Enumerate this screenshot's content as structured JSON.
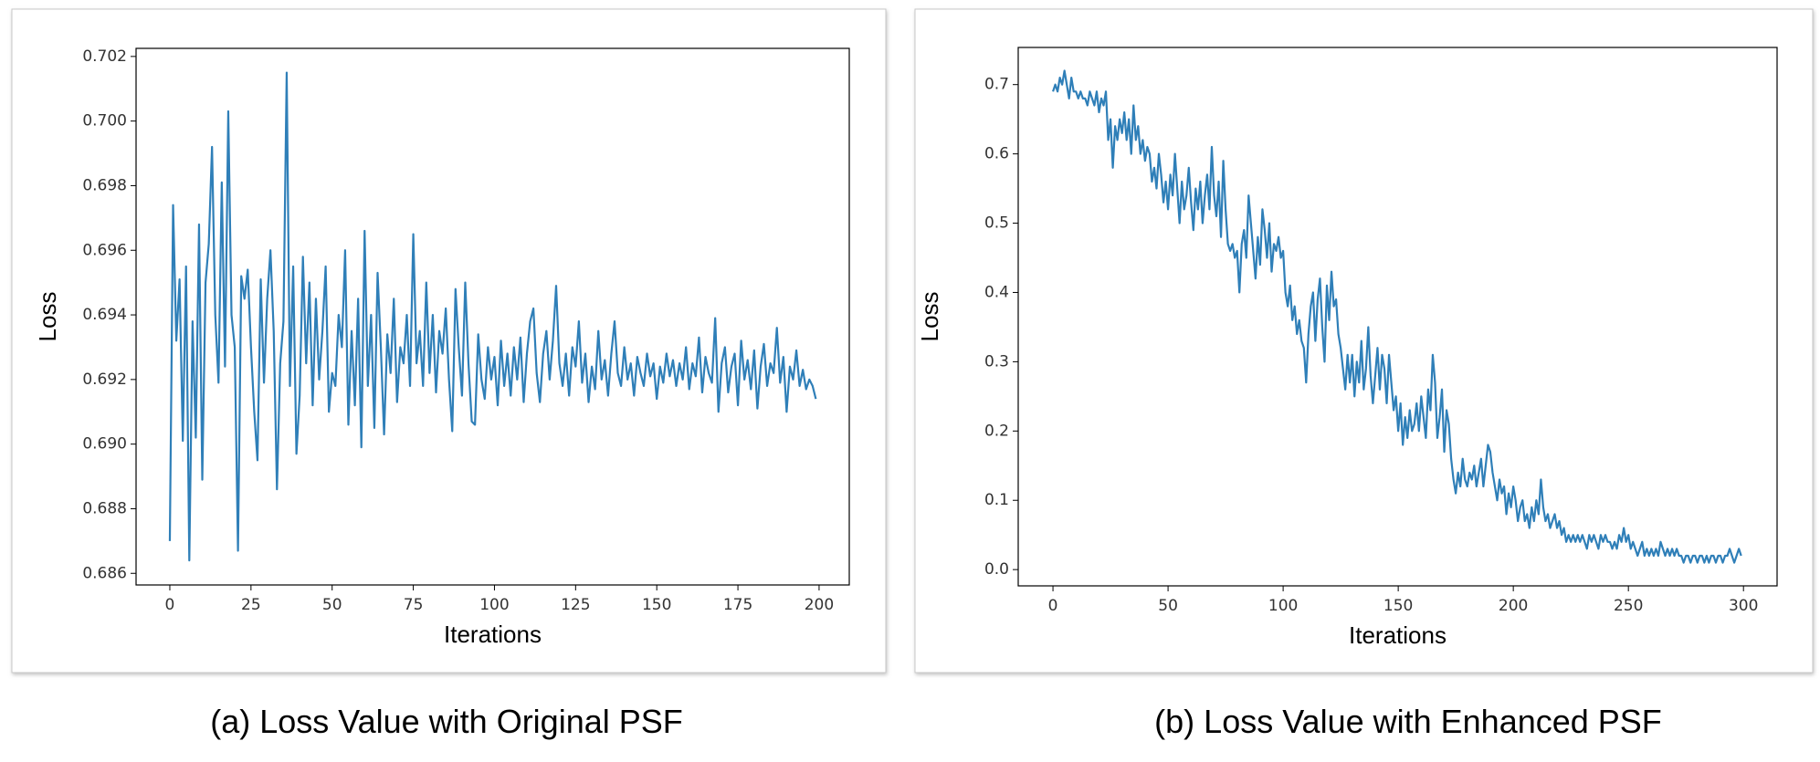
{
  "chart_data": [
    {
      "type": "line",
      "caption": "(a) Loss Value with Original PSF",
      "xlabel": "Iterations",
      "ylabel": "Loss",
      "xlim": [
        -10.4,
        209.3
      ],
      "xticks": [
        0,
        25,
        50,
        75,
        100,
        125,
        150,
        175,
        200
      ],
      "ylim": [
        0.68564,
        0.70225
      ],
      "yticks": [
        0.686,
        0.688,
        {
          "value": 0.69,
          "label": "0.690"
        },
        0.692,
        0.694,
        0.696,
        0.698,
        {
          "value": 0.7,
          "label": "0.700"
        },
        0.702
      ],
      "series": [
        {
          "color": "#2f7fb8",
          "values": [
            0.687,
            0.6974,
            0.6932,
            0.6951,
            0.6901,
            0.6955,
            0.6864,
            0.6938,
            0.6902,
            0.6968,
            0.6889,
            0.695,
            0.6962,
            0.6992,
            0.694,
            0.6919,
            0.6981,
            0.6924,
            0.7003,
            0.694,
            0.693,
            0.6867,
            0.6952,
            0.6945,
            0.6954,
            0.693,
            0.691,
            0.6895,
            0.6951,
            0.6919,
            0.6945,
            0.696,
            0.6935,
            0.6886,
            0.6925,
            0.6938,
            0.7015,
            0.6918,
            0.6955,
            0.6897,
            0.6915,
            0.6958,
            0.6925,
            0.695,
            0.6912,
            0.6945,
            0.692,
            0.6935,
            0.6955,
            0.691,
            0.6922,
            0.6918,
            0.694,
            0.693,
            0.696,
            0.6906,
            0.6935,
            0.6912,
            0.6945,
            0.6899,
            0.6966,
            0.6918,
            0.694,
            0.6905,
            0.6953,
            0.693,
            0.6903,
            0.6934,
            0.6922,
            0.6945,
            0.6913,
            0.693,
            0.6925,
            0.694,
            0.6918,
            0.6965,
            0.6925,
            0.6935,
            0.6918,
            0.695,
            0.6922,
            0.694,
            0.6916,
            0.6935,
            0.6928,
            0.6942,
            0.692,
            0.6904,
            0.6948,
            0.693,
            0.6915,
            0.695,
            0.6925,
            0.6907,
            0.6906,
            0.6934,
            0.692,
            0.6914,
            0.693,
            0.692,
            0.6927,
            0.6912,
            0.6932,
            0.6918,
            0.6928,
            0.6915,
            0.693,
            0.692,
            0.6933,
            0.6913,
            0.6928,
            0.6938,
            0.6942,
            0.6922,
            0.6913,
            0.6928,
            0.6935,
            0.692,
            0.6932,
            0.6949,
            0.6925,
            0.6918,
            0.6928,
            0.6915,
            0.693,
            0.6924,
            0.6938,
            0.6919,
            0.6928,
            0.6913,
            0.6924,
            0.6917,
            0.6935,
            0.692,
            0.6926,
            0.6915,
            0.6928,
            0.6938,
            0.6922,
            0.6918,
            0.693,
            0.692,
            0.6925,
            0.6915,
            0.6927,
            0.6922,
            0.6918,
            0.6928,
            0.6921,
            0.6925,
            0.6914,
            0.6924,
            0.6919,
            0.6928,
            0.6921,
            0.6926,
            0.6918,
            0.6925,
            0.692,
            0.693,
            0.6917,
            0.6925,
            0.6921,
            0.6933,
            0.6916,
            0.6927,
            0.6922,
            0.6919,
            0.6939,
            0.691,
            0.6925,
            0.693,
            0.6916,
            0.6924,
            0.6928,
            0.6912,
            0.6932,
            0.692,
            0.6926,
            0.6917,
            0.6929,
            0.6911,
            0.6924,
            0.6931,
            0.6918,
            0.6925,
            0.6922,
            0.6936,
            0.6919,
            0.6927,
            0.691,
            0.6924,
            0.692,
            0.6929,
            0.6918,
            0.6923,
            0.6917,
            0.692,
            0.6918,
            0.6914
          ]
        }
      ]
    },
    {
      "type": "line",
      "caption": "(b) Loss Value with Enhanced PSF",
      "xlabel": "Iterations",
      "ylabel": "Loss",
      "xlim": [
        -15.1,
        314.6
      ],
      "xticks": [
        0,
        50,
        100,
        150,
        200,
        250,
        300
      ],
      "ylim": [
        -0.0235,
        0.7536
      ],
      "yticks": [
        {
          "value": 0,
          "label": "0.0"
        },
        0.1,
        0.2,
        0.3,
        0.4,
        0.5,
        0.6,
        0.7
      ],
      "series": [
        {
          "color": "#2f7fb8",
          "values": [
            0.69,
            0.7,
            0.69,
            0.71,
            0.7,
            0.72,
            0.7,
            0.68,
            0.71,
            0.69,
            0.69,
            0.68,
            0.69,
            0.68,
            0.68,
            0.67,
            0.69,
            0.68,
            0.67,
            0.69,
            0.66,
            0.68,
            0.67,
            0.69,
            0.62,
            0.65,
            0.58,
            0.64,
            0.62,
            0.65,
            0.63,
            0.66,
            0.62,
            0.65,
            0.6,
            0.67,
            0.62,
            0.64,
            0.6,
            0.62,
            0.59,
            0.61,
            0.6,
            0.56,
            0.58,
            0.55,
            0.6,
            0.57,
            0.53,
            0.56,
            0.52,
            0.57,
            0.54,
            0.6,
            0.55,
            0.5,
            0.56,
            0.52,
            0.54,
            0.58,
            0.53,
            0.49,
            0.55,
            0.52,
            0.56,
            0.5,
            0.54,
            0.57,
            0.52,
            0.61,
            0.54,
            0.51,
            0.56,
            0.48,
            0.59,
            0.52,
            0.47,
            0.46,
            0.47,
            0.45,
            0.46,
            0.4,
            0.47,
            0.49,
            0.45,
            0.54,
            0.5,
            0.46,
            0.42,
            0.48,
            0.44,
            0.52,
            0.49,
            0.45,
            0.5,
            0.43,
            0.47,
            0.46,
            0.48,
            0.45,
            0.46,
            0.4,
            0.38,
            0.41,
            0.36,
            0.38,
            0.34,
            0.36,
            0.33,
            0.32,
            0.27,
            0.34,
            0.38,
            0.4,
            0.33,
            0.39,
            0.42,
            0.35,
            0.3,
            0.41,
            0.36,
            0.43,
            0.38,
            0.39,
            0.34,
            0.32,
            0.29,
            0.26,
            0.31,
            0.27,
            0.31,
            0.25,
            0.3,
            0.27,
            0.33,
            0.26,
            0.29,
            0.35,
            0.28,
            0.24,
            0.28,
            0.32,
            0.26,
            0.31,
            0.29,
            0.24,
            0.31,
            0.27,
            0.23,
            0.25,
            0.2,
            0.24,
            0.18,
            0.22,
            0.19,
            0.23,
            0.2,
            0.21,
            0.24,
            0.2,
            0.25,
            0.22,
            0.19,
            0.26,
            0.23,
            0.31,
            0.27,
            0.19,
            0.22,
            0.26,
            0.17,
            0.23,
            0.21,
            0.16,
            0.13,
            0.11,
            0.14,
            0.12,
            0.16,
            0.13,
            0.12,
            0.14,
            0.13,
            0.15,
            0.12,
            0.14,
            0.16,
            0.12,
            0.15,
            0.18,
            0.17,
            0.14,
            0.12,
            0.1,
            0.13,
            0.11,
            0.12,
            0.08,
            0.11,
            0.09,
            0.12,
            0.1,
            0.07,
            0.09,
            0.1,
            0.07,
            0.08,
            0.06,
            0.09,
            0.07,
            0.1,
            0.08,
            0.13,
            0.09,
            0.07,
            0.08,
            0.06,
            0.07,
            0.08,
            0.06,
            0.07,
            0.05,
            0.06,
            0.04,
            0.05,
            0.04,
            0.05,
            0.04,
            0.05,
            0.04,
            0.05,
            0.04,
            0.03,
            0.05,
            0.04,
            0.05,
            0.04,
            0.03,
            0.05,
            0.04,
            0.05,
            0.04,
            0.04,
            0.03,
            0.04,
            0.03,
            0.05,
            0.04,
            0.06,
            0.04,
            0.05,
            0.03,
            0.04,
            0.03,
            0.02,
            0.03,
            0.04,
            0.02,
            0.03,
            0.02,
            0.03,
            0.02,
            0.03,
            0.02,
            0.04,
            0.03,
            0.02,
            0.03,
            0.02,
            0.03,
            0.02,
            0.03,
            0.02,
            0.02,
            0.01,
            0.02,
            0.02,
            0.01,
            0.02,
            0.02,
            0.01,
            0.02,
            0.02,
            0.01,
            0.02,
            0.01,
            0.02,
            0.02,
            0.01,
            0.02,
            0.02,
            0.01,
            0.02,
            0.02,
            0.03,
            0.02,
            0.01,
            0.02,
            0.03,
            0.02
          ]
        }
      ]
    }
  ]
}
